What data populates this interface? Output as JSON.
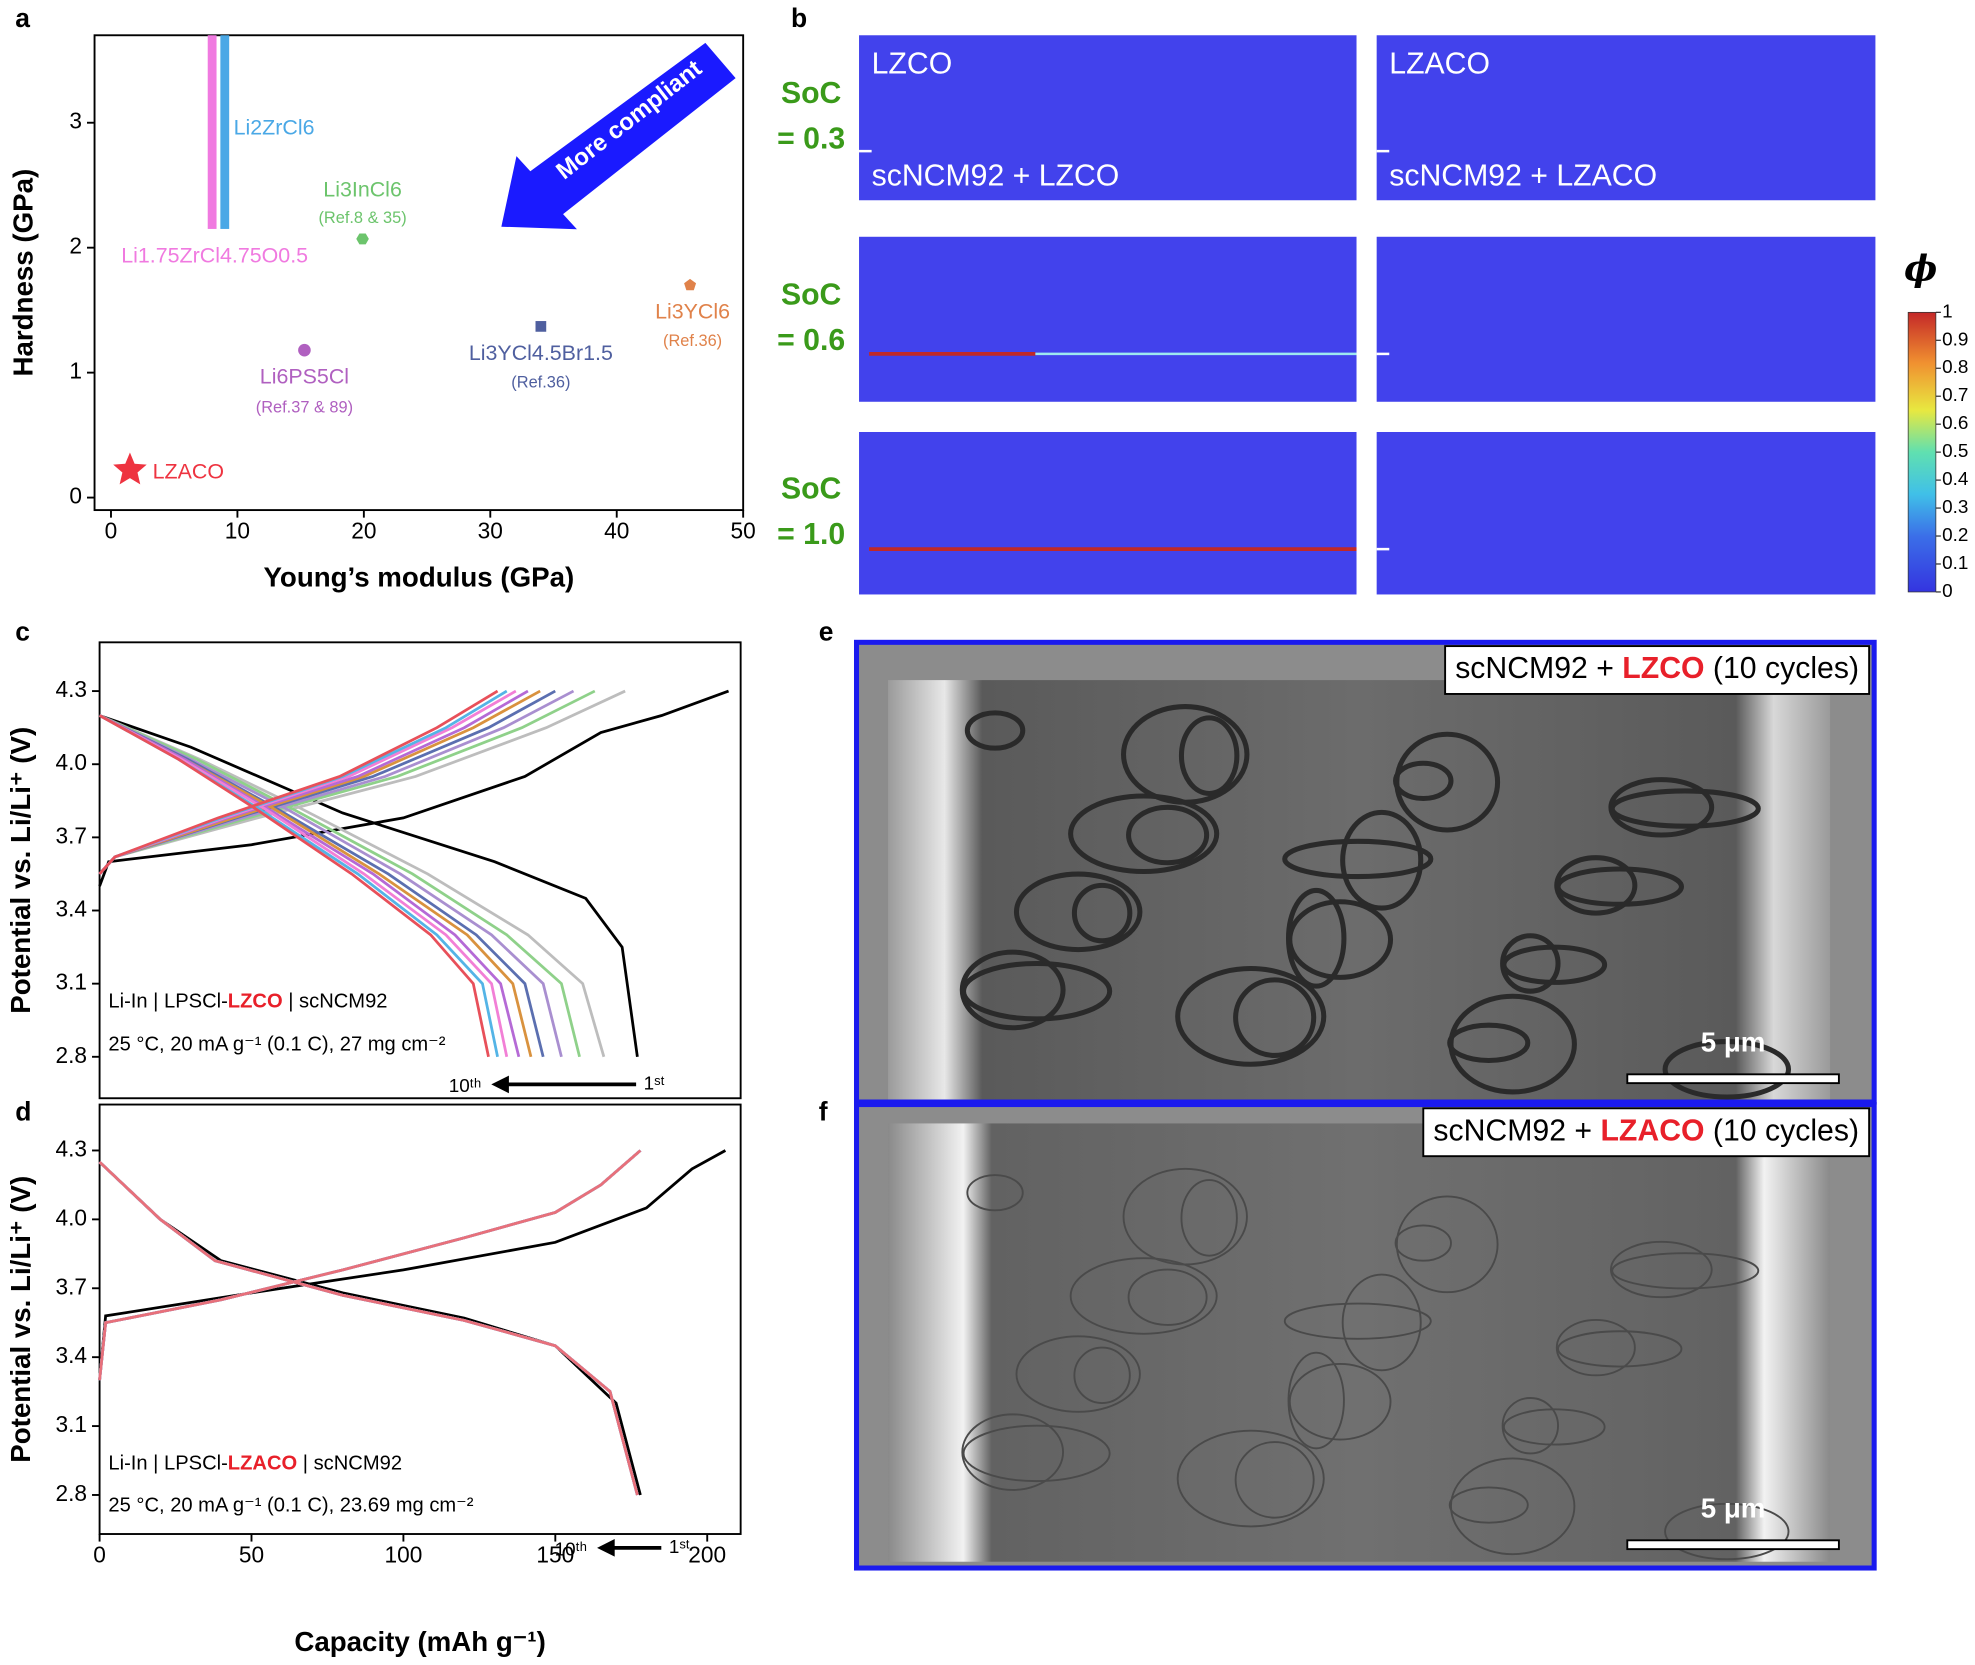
{
  "panel_labels": [
    "a",
    "b",
    "c",
    "d",
    "e",
    "f"
  ],
  "chart_data": [
    {
      "type": "scatter",
      "xlabel": "Young’s modulus (GPa)",
      "ylabel": "Hardness (GPa)",
      "xlim": [
        -1.3,
        50
      ],
      "ylim": [
        -0.1,
        3.7
      ],
      "xticks": [
        0,
        10,
        20,
        30,
        40,
        50
      ],
      "yticks": [
        0,
        1,
        2,
        3
      ],
      "annotation": "More compliant",
      "series": [
        {
          "name": "Li1.75ZrCl4.75O0.5",
          "color": "#f07ae0",
          "marker": "vbar",
          "x": [
            8
          ],
          "values": [
            2.15
          ]
        },
        {
          "name": "Li2ZrCl6",
          "color": "#4aa8e6",
          "marker": "vbar",
          "x": [
            9
          ],
          "values": [
            2.15
          ]
        },
        {
          "name": "LZACO",
          "color": "#ee3340",
          "marker": "star",
          "x": [
            1.5
          ],
          "values": [
            0.22
          ]
        },
        {
          "name": "Li6PS5Cl",
          "note": "(Ref.37 & 89)",
          "color": "#b060c0",
          "marker": "circle",
          "x": [
            15.3
          ],
          "values": [
            1.18
          ]
        },
        {
          "name": "Li3InCl6",
          "note": "(Ref.8 & 35)",
          "color": "#6cc46c",
          "marker": "hexagon",
          "x": [
            19.9
          ],
          "values": [
            2.07
          ]
        },
        {
          "name": "Li3YCl4.5Br1.5",
          "note": "(Ref.36)",
          "color": "#4f5f9f",
          "marker": "square",
          "x": [
            34
          ],
          "values": [
            1.37
          ]
        },
        {
          "name": "Li3YCl6",
          "note": "(Ref.36)",
          "color": "#e0824a",
          "marker": "pentagon",
          "x": [
            45.8
          ],
          "values": [
            1.7
          ]
        }
      ]
    },
    {
      "type": "line",
      "ylabel": "Potential vs. Li/Li⁺ (V)",
      "xlim": [
        0,
        211
      ],
      "ylim": [
        2.63,
        4.5
      ],
      "yticks": [
        2.8,
        3.1,
        3.4,
        3.7,
        {
          "value": 4,
          "label": "4.0"
        },
        4.3
      ],
      "annotations": [
        {
          "parts": [
            {
              "text": "Li-In | LPSCl-"
            },
            {
              "text": "LZCO",
              "color": "#e8202a"
            },
            {
              "text": " | scNCM92"
            }
          ]
        },
        {
          "parts": [
            {
              "text": "25 °C, 20 mA g⁻¹ (0.1 C), 27 mg cm⁻²"
            }
          ]
        }
      ],
      "cycle_labels": [
        "10ᵗʰ",
        "1ˢᵗ"
      ],
      "series": [
        {
          "color": "#000000",
          "x": [
            0,
            3,
            50,
            100,
            140,
            165,
            185,
            207,
            null,
            0,
            30,
            80,
            130,
            160,
            172,
            177
          ],
          "values": [
            3.5,
            3.6,
            3.67,
            3.78,
            3.95,
            4.13,
            4.2,
            4.3,
            null,
            4.2,
            4.07,
            3.8,
            3.6,
            3.45,
            3.25,
            2.8
          ]
        },
        {
          "color": "#bdbdbd",
          "x": [
            0,
            5,
            52,
            104,
            147,
            173,
            null,
            0,
            33,
            66,
            108,
            141,
            159,
            166
          ],
          "values": [
            3.55,
            3.62,
            3.78,
            3.95,
            4.15,
            4.3,
            null,
            4.2,
            4.02,
            3.82,
            3.55,
            3.3,
            3.1,
            2.8
          ]
        },
        {
          "color": "#8fd18a",
          "x": [
            0,
            5,
            49,
            98,
            139,
            163,
            null,
            0,
            32,
            63,
            103,
            134,
            152,
            158
          ],
          "values": [
            3.55,
            3.62,
            3.78,
            3.95,
            4.15,
            4.3,
            null,
            4.2,
            4.02,
            3.82,
            3.55,
            3.3,
            3.1,
            2.8
          ]
        },
        {
          "color": "#a98fd0",
          "x": [
            0,
            5,
            47,
            94,
            133,
            156,
            null,
            0,
            30,
            61,
            99,
            129,
            146,
            152
          ],
          "values": [
            3.55,
            3.62,
            3.78,
            3.95,
            4.15,
            4.3,
            null,
            4.2,
            4.02,
            3.82,
            3.55,
            3.3,
            3.1,
            2.8
          ]
        },
        {
          "color": "#5b6fb0",
          "x": [
            0,
            5,
            45,
            90,
            128,
            150,
            null,
            0,
            29,
            58,
            95,
            124,
            140,
            146
          ],
          "values": [
            3.55,
            3.62,
            3.78,
            3.95,
            4.15,
            4.3,
            null,
            4.2,
            4.02,
            3.82,
            3.55,
            3.3,
            3.1,
            2.8
          ]
        },
        {
          "color": "#d9923e",
          "x": [
            0,
            5,
            44,
            87,
            123,
            145,
            null,
            0,
            28,
            57,
            92,
            121,
            136,
            142
          ],
          "values": [
            3.55,
            3.62,
            3.78,
            3.95,
            4.15,
            4.3,
            null,
            4.2,
            4.02,
            3.82,
            3.55,
            3.3,
            3.1,
            2.8
          ]
        },
        {
          "color": "#b56ad6",
          "x": [
            0,
            5,
            42,
            85,
            120,
            141,
            null,
            0,
            28,
            55,
            90,
            117,
            132,
            138
          ],
          "values": [
            3.55,
            3.62,
            3.78,
            3.95,
            4.15,
            4.3,
            null,
            4.2,
            4.02,
            3.82,
            3.55,
            3.3,
            3.1,
            2.8
          ]
        },
        {
          "color": "#f27fd6",
          "x": [
            0,
            5,
            41,
            82,
            116,
            137,
            null,
            0,
            27,
            54,
            87,
            114,
            129,
            134
          ],
          "values": [
            3.55,
            3.62,
            3.78,
            3.95,
            4.15,
            4.3,
            null,
            4.2,
            4.02,
            3.82,
            3.55,
            3.3,
            3.1,
            2.8
          ]
        },
        {
          "color": "#54b4e6",
          "x": [
            0,
            5,
            40,
            80,
            114,
            134,
            null,
            0,
            26,
            52,
            85,
            111,
            126,
            131
          ],
          "values": [
            3.55,
            3.62,
            3.78,
            3.95,
            4.15,
            4.3,
            null,
            4.2,
            4.02,
            3.82,
            3.55,
            3.3,
            3.1,
            2.8
          ]
        },
        {
          "color": "#e8505a",
          "x": [
            0,
            5,
            39,
            79,
            111,
            131,
            null,
            0,
            26,
            51,
            83,
            109,
            123,
            128
          ],
          "values": [
            3.55,
            3.62,
            3.78,
            3.95,
            4.15,
            4.3,
            null,
            4.2,
            4.02,
            3.82,
            3.55,
            3.3,
            3.1,
            2.8
          ]
        }
      ]
    },
    {
      "type": "line",
      "xlabel": "Capacity (mAh g⁻¹)",
      "ylabel": "Potential vs. Li/Li⁺ (V)",
      "xlim": [
        0,
        211
      ],
      "ylim": [
        2.63,
        4.5
      ],
      "xticks": [
        0,
        50,
        100,
        150,
        200
      ],
      "yticks": [
        2.8,
        3.1,
        3.4,
        3.7,
        {
          "value": 4,
          "label": "4.0"
        },
        4.3
      ],
      "annotations": [
        {
          "parts": [
            {
              "text": "Li-In | LPSCl-"
            },
            {
              "text": "LZACO",
              "color": "#e8202a"
            },
            {
              "text": " | scNCM92"
            }
          ]
        },
        {
          "parts": [
            {
              "text": "25 °C, 20 mA g⁻¹ (0.1 C), 23.69 mg cm⁻²"
            }
          ]
        }
      ],
      "cycle_labels": [
        "10ᵗʰ",
        "1ˢᵗ"
      ],
      "series": [
        {
          "color": "#000000",
          "x": [
            0,
            2,
            50,
            100,
            150,
            180,
            195,
            206,
            null,
            0,
            20,
            40,
            80,
            120,
            150,
            170,
            178
          ],
          "values": [
            3.3,
            3.58,
            3.68,
            3.78,
            3.9,
            4.05,
            4.22,
            4.3,
            null,
            4.25,
            4.0,
            3.82,
            3.68,
            3.57,
            3.45,
            3.2,
            2.8
          ]
        },
        {
          "color": "#bdbdbd",
          "x": [
            0,
            2,
            40,
            80,
            120,
            150,
            165,
            178,
            null,
            0,
            20,
            38,
            80,
            120,
            150,
            168,
            177
          ],
          "values": [
            3.3,
            3.55,
            3.65,
            3.78,
            3.92,
            4.03,
            4.15,
            4.3,
            null,
            4.25,
            4.0,
            3.82,
            3.67,
            3.56,
            3.45,
            3.25,
            2.8
          ]
        },
        {
          "color": "#bdbdbd",
          "x": [
            0,
            2,
            40,
            80,
            120,
            150,
            165,
            178,
            null,
            0,
            20,
            38,
            80,
            120,
            150,
            168,
            177
          ],
          "values": [
            3.3,
            3.55,
            3.65,
            3.78,
            3.92,
            4.03,
            4.15,
            4.3,
            null,
            4.25,
            4.0,
            3.82,
            3.67,
            3.56,
            3.45,
            3.25,
            2.8
          ]
        },
        {
          "color": "#bdbdbd",
          "x": [
            0,
            2,
            40,
            80,
            120,
            150,
            165,
            178,
            null,
            0,
            20,
            38,
            80,
            120,
            150,
            168,
            177
          ],
          "values": [
            3.3,
            3.55,
            3.65,
            3.78,
            3.92,
            4.03,
            4.15,
            4.3,
            null,
            4.25,
            4.0,
            3.82,
            3.67,
            3.56,
            3.45,
            3.25,
            2.8
          ]
        },
        {
          "color": "#bdbdbd",
          "x": [
            0,
            2,
            40,
            80,
            120,
            150,
            165,
            178,
            null,
            0,
            20,
            38,
            80,
            120,
            150,
            168,
            177
          ],
          "values": [
            3.3,
            3.55,
            3.65,
            3.78,
            3.92,
            4.03,
            4.15,
            4.3,
            null,
            4.25,
            4.0,
            3.82,
            3.67,
            3.56,
            3.45,
            3.25,
            2.8
          ]
        },
        {
          "color": "#a98fd0",
          "x": [
            0,
            2,
            40,
            80,
            120,
            150,
            165,
            178,
            null,
            0,
            20,
            38,
            80,
            120,
            150,
            168,
            177
          ],
          "values": [
            3.3,
            3.55,
            3.65,
            3.78,
            3.92,
            4.03,
            4.15,
            4.3,
            null,
            4.25,
            4.0,
            3.82,
            3.67,
            3.56,
            3.45,
            3.25,
            2.8
          ]
        },
        {
          "color": "#a98fd0",
          "x": [
            0,
            2,
            40,
            80,
            120,
            150,
            165,
            178,
            null,
            0,
            20,
            38,
            80,
            120,
            150,
            168,
            177
          ],
          "values": [
            3.3,
            3.55,
            3.65,
            3.78,
            3.92,
            4.03,
            4.15,
            4.3,
            null,
            4.25,
            4.0,
            3.82,
            3.67,
            3.56,
            3.45,
            3.25,
            2.8
          ]
        },
        {
          "color": "#a98fd0",
          "x": [
            0,
            2,
            40,
            80,
            120,
            150,
            165,
            178,
            null,
            0,
            20,
            38,
            80,
            120,
            150,
            168,
            177
          ],
          "values": [
            3.3,
            3.55,
            3.65,
            3.78,
            3.92,
            4.03,
            4.15,
            4.3,
            null,
            4.25,
            4.0,
            3.82,
            3.67,
            3.56,
            3.45,
            3.25,
            2.8
          ]
        },
        {
          "color": "#8fb0d0",
          "x": [
            0,
            2,
            40,
            80,
            120,
            150,
            165,
            178,
            null,
            0,
            20,
            38,
            80,
            120,
            150,
            168,
            177
          ],
          "values": [
            3.3,
            3.55,
            3.65,
            3.78,
            3.92,
            4.03,
            4.15,
            4.3,
            null,
            4.25,
            4.0,
            3.82,
            3.67,
            3.56,
            3.45,
            3.25,
            2.8
          ]
        },
        {
          "color": "#e8707a",
          "x": [
            0,
            2,
            40,
            80,
            120,
            150,
            165,
            178,
            null,
            0,
            20,
            38,
            80,
            120,
            150,
            168,
            177
          ],
          "values": [
            3.3,
            3.55,
            3.65,
            3.78,
            3.92,
            4.03,
            4.15,
            4.3,
            null,
            4.25,
            4.0,
            3.82,
            3.67,
            3.56,
            3.45,
            3.25,
            2.8
          ]
        }
      ]
    }
  ],
  "simulation": {
    "columns": [
      {
        "title": "LZCO",
        "interface": "scNCM92 + LZCO"
      },
      {
        "title": "LZACO",
        "interface": "scNCM92 + LZACO"
      }
    ],
    "rows": [
      [
        "SoC",
        "= 0.3"
      ],
      [
        "SoC",
        "= 0.6"
      ],
      [
        "SoC",
        "= 1.0"
      ]
    ],
    "colorbar": {
      "label": "ϕ",
      "ticks": [
        0,
        0.1,
        0.2,
        0.3,
        0.4,
        0.5,
        0.6,
        0.7,
        0.8,
        0.9,
        1
      ]
    }
  },
  "micrographs": [
    {
      "parts": [
        {
          "text": "scNCM92 + "
        },
        {
          "text": "LZCO",
          "color": "#e8202a"
        },
        {
          "text": " (10 cycles)"
        }
      ],
      "scale_bar": "5 μm"
    },
    {
      "parts": [
        {
          "text": "scNCM92 + "
        },
        {
          "text": "LZACO",
          "color": "#e8202a"
        },
        {
          "text": " (10 cycles)"
        }
      ],
      "scale_bar": "5 μm"
    }
  ]
}
